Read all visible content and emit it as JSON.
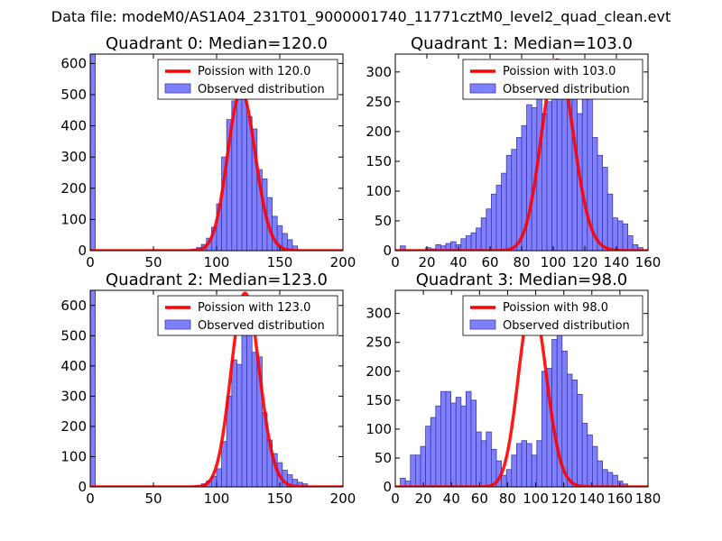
{
  "figure": {
    "suptitle": "Data file: modeM0/AS1A04_231T01_9000001740_11771cztM0_level2_quad_clean.evt"
  },
  "colors": {
    "bar_fill": "#8080ff",
    "bar_edge": "#3a3aa8",
    "poisson": "#ff0000"
  },
  "chart_data": [
    {
      "type": "bar",
      "title": "Quadrant 0: Median=120.0",
      "xlim": [
        0,
        200
      ],
      "ylim": [
        0,
        630
      ],
      "xticks": [
        0,
        50,
        100,
        150,
        200
      ],
      "yticks": [
        0,
        100,
        200,
        300,
        400,
        500,
        600
      ],
      "bin_width": 4,
      "bins": [
        [
          0,
          630
        ],
        [
          80,
          5
        ],
        [
          84,
          10
        ],
        [
          88,
          20
        ],
        [
          92,
          40
        ],
        [
          96,
          75
        ],
        [
          100,
          150
        ],
        [
          104,
          300
        ],
        [
          108,
          420
        ],
        [
          112,
          480
        ],
        [
          116,
          560
        ],
        [
          120,
          540
        ],
        [
          124,
          430
        ],
        [
          128,
          390
        ],
        [
          132,
          260
        ],
        [
          136,
          230
        ],
        [
          140,
          170
        ],
        [
          144,
          110
        ],
        [
          148,
          80
        ],
        [
          152,
          55
        ],
        [
          156,
          35
        ],
        [
          160,
          15
        ]
      ],
      "poisson_mean": 120,
      "poisson_peak": 510,
      "legend": {
        "line": "Poission with 120.0",
        "bars": "Observed distribution"
      }
    },
    {
      "type": "bar",
      "title": "Quadrant 1: Median=103.0",
      "xlim": [
        0,
        160
      ],
      "ylim": [
        0,
        330
      ],
      "xticks": [
        0,
        20,
        40,
        60,
        80,
        100,
        120,
        140,
        160
      ],
      "yticks": [
        0,
        50,
        100,
        150,
        200,
        250,
        300
      ],
      "bin_width": 3.2,
      "bins": [
        [
          3.2,
          8
        ],
        [
          19.2,
          5
        ],
        [
          22.4,
          3
        ],
        [
          25.6,
          10
        ],
        [
          28.8,
          8
        ],
        [
          32,
          12
        ],
        [
          35.2,
          15
        ],
        [
          38.4,
          10
        ],
        [
          41.6,
          20
        ],
        [
          44.8,
          25
        ],
        [
          48,
          30
        ],
        [
          51.2,
          38
        ],
        [
          54.4,
          55
        ],
        [
          57.6,
          70
        ],
        [
          60.8,
          95
        ],
        [
          64,
          110
        ],
        [
          67.2,
          130
        ],
        [
          70.4,
          160
        ],
        [
          73.6,
          170
        ],
        [
          76.8,
          190
        ],
        [
          80,
          210
        ],
        [
          83.2,
          245
        ],
        [
          86.4,
          240
        ],
        [
          89.6,
          290
        ],
        [
          92.8,
          230
        ],
        [
          96,
          250
        ],
        [
          99.2,
          265
        ],
        [
          102.4,
          295
        ],
        [
          105.6,
          315
        ],
        [
          108.8,
          260
        ],
        [
          112,
          265
        ],
        [
          115.2,
          230
        ],
        [
          118.4,
          265
        ],
        [
          121.6,
          280
        ],
        [
          124.8,
          190
        ],
        [
          128,
          160
        ],
        [
          131.2,
          140
        ],
        [
          134.4,
          95
        ],
        [
          137.6,
          55
        ],
        [
          140.8,
          50
        ],
        [
          144,
          45
        ],
        [
          147.2,
          25
        ],
        [
          150.4,
          10
        ],
        [
          153.6,
          5
        ]
      ],
      "poisson_mean": 103,
      "poisson_peak": 320,
      "legend": {
        "line": "Poission with 103.0",
        "bars": "Observed distribution"
      }
    },
    {
      "type": "bar",
      "title": "Quadrant 2: Median=123.0",
      "xlim": [
        0,
        200
      ],
      "ylim": [
        0,
        650
      ],
      "xticks": [
        0,
        50,
        100,
        150,
        200
      ],
      "yticks": [
        0,
        100,
        200,
        300,
        400,
        500,
        600
      ],
      "bin_width": 4,
      "bins": [
        [
          0,
          650
        ],
        [
          84,
          5
        ],
        [
          88,
          10
        ],
        [
          92,
          20
        ],
        [
          96,
          35
        ],
        [
          100,
          60
        ],
        [
          104,
          150
        ],
        [
          108,
          300
        ],
        [
          112,
          420
        ],
        [
          116,
          405
        ],
        [
          120,
          545
        ],
        [
          124,
          560
        ],
        [
          128,
          445
        ],
        [
          132,
          430
        ],
        [
          136,
          245
        ],
        [
          140,
          155
        ],
        [
          144,
          110
        ],
        [
          148,
          80
        ],
        [
          152,
          55
        ],
        [
          156,
          40
        ],
        [
          160,
          25
        ],
        [
          164,
          15
        ],
        [
          168,
          10
        ]
      ],
      "poisson_mean": 123,
      "poisson_peak": 640,
      "legend": {
        "line": "Poission with 123.0",
        "bars": "Observed distribution"
      }
    },
    {
      "type": "bar",
      "title": "Quadrant 3: Median=98.0",
      "xlim": [
        0,
        180
      ],
      "ylim": [
        0,
        340
      ],
      "xticks": [
        0,
        20,
        40,
        60,
        80,
        100,
        120,
        140,
        160,
        180
      ],
      "yticks": [
        0,
        50,
        100,
        150,
        200,
        250,
        300
      ],
      "bin_width": 3.6,
      "bins": [
        [
          3.6,
          15
        ],
        [
          7.2,
          10
        ],
        [
          10.8,
          55
        ],
        [
          14.4,
          55
        ],
        [
          18,
          70
        ],
        [
          21.6,
          105
        ],
        [
          25.2,
          120
        ],
        [
          28.8,
          140
        ],
        [
          32.4,
          165
        ],
        [
          36,
          165
        ],
        [
          39.6,
          145
        ],
        [
          43.2,
          155
        ],
        [
          46.8,
          140
        ],
        [
          50.4,
          165
        ],
        [
          54,
          150
        ],
        [
          57.6,
          95
        ],
        [
          61.2,
          80
        ],
        [
          64.8,
          95
        ],
        [
          68.4,
          65
        ],
        [
          72,
          45
        ],
        [
          75.6,
          20
        ],
        [
          79.2,
          30
        ],
        [
          82.8,
          55
        ],
        [
          86.4,
          75
        ],
        [
          90,
          80
        ],
        [
          93.6,
          75
        ],
        [
          97.2,
          55
        ],
        [
          100.8,
          80
        ],
        [
          104.4,
          200
        ],
        [
          108,
          205
        ],
        [
          111.6,
          255
        ],
        [
          115.2,
          270
        ],
        [
          118.8,
          235
        ],
        [
          122.4,
          195
        ],
        [
          126,
          185
        ],
        [
          129.6,
          160
        ],
        [
          133.2,
          110
        ],
        [
          136.8,
          90
        ],
        [
          140.4,
          70
        ],
        [
          144,
          45
        ],
        [
          147.6,
          30
        ],
        [
          151.2,
          25
        ],
        [
          154.8,
          20
        ],
        [
          158.4,
          10
        ],
        [
          162,
          5
        ]
      ],
      "poisson_mean": 98,
      "poisson_peak": 320,
      "legend": {
        "line": "Poission with 98.0",
        "bars": "Observed distribution"
      }
    }
  ]
}
